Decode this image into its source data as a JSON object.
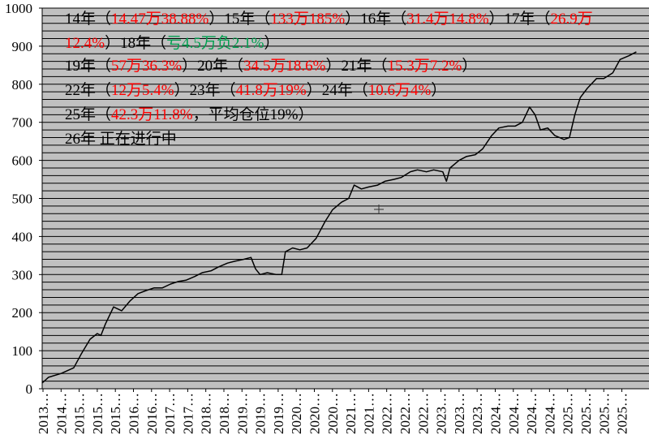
{
  "chart_data": {
    "type": "line",
    "ylim": [
      0,
      1000
    ],
    "yticks": [
      0,
      100,
      200,
      300,
      400,
      500,
      600,
      700,
      800,
      900,
      1000
    ],
    "grid": true,
    "grid_minor_divisions": 5,
    "plot_background": "#c0c0c0",
    "xlim": [
      0,
      33.5
    ],
    "xticks": [
      {
        "value": 0,
        "label": "2013…"
      },
      {
        "value": 1,
        "label": "2014…"
      },
      {
        "value": 2,
        "label": "2015…"
      },
      {
        "value": 3,
        "label": "2015…"
      },
      {
        "value": 4,
        "label": "2015…"
      },
      {
        "value": 5,
        "label": "2016…"
      },
      {
        "value": 6,
        "label": "2016…"
      },
      {
        "value": 7,
        "label": "2017…"
      },
      {
        "value": 8,
        "label": "2017…"
      },
      {
        "value": 9,
        "label": "2018…"
      },
      {
        "value": 10,
        "label": "2018…"
      },
      {
        "value": 11,
        "label": "2019…"
      },
      {
        "value": 12,
        "label": "2019…"
      },
      {
        "value": 13,
        "label": "2019…"
      },
      {
        "value": 14,
        "label": "2020…"
      },
      {
        "value": 15,
        "label": "2020…"
      },
      {
        "value": 16,
        "label": "2020…"
      },
      {
        "value": 17,
        "label": "2021…"
      },
      {
        "value": 18,
        "label": "2021…"
      },
      {
        "value": 19,
        "label": "2022…"
      },
      {
        "value": 20,
        "label": "2022…"
      },
      {
        "value": 21,
        "label": "2022…"
      },
      {
        "value": 22,
        "label": "2023…"
      },
      {
        "value": 23,
        "label": "2023…"
      },
      {
        "value": 24,
        "label": "2023…"
      },
      {
        "value": 25,
        "label": "2024…"
      },
      {
        "value": 26,
        "label": "2024…"
      },
      {
        "value": 27,
        "label": "2024…"
      },
      {
        "value": 28,
        "label": "2024…"
      },
      {
        "value": 29,
        "label": "2025…"
      },
      {
        "value": 30,
        "label": "2025…"
      },
      {
        "value": 31,
        "label": "2025…"
      },
      {
        "value": 32,
        "label": "2025…"
      }
    ],
    "series": [
      {
        "color": "#000000",
        "x": [
          -0.05,
          0.3,
          1.0,
          1.7,
          2.1,
          2.6,
          3.0,
          3.2,
          3.45,
          3.9,
          4.35,
          4.8,
          5.25,
          5.7,
          6.15,
          6.6,
          7.05,
          7.5,
          7.9,
          8.4,
          8.8,
          9.3,
          9.7,
          10.2,
          10.6,
          11.1,
          11.5,
          11.75,
          12.0,
          12.4,
          12.9,
          13.2,
          13.4,
          13.8,
          14.2,
          14.6,
          15.1,
          15.6,
          16.0,
          16.5,
          16.9,
          17.2,
          17.6,
          18.0,
          18.5,
          18.9,
          19.4,
          19.8,
          20.3,
          20.7,
          21.2,
          21.6,
          22.1,
          22.3,
          22.5,
          23.0,
          23.4,
          23.9,
          24.3,
          24.8,
          25.2,
          25.7,
          26.1,
          26.5,
          26.9,
          27.2,
          27.5,
          27.9,
          28.3,
          28.8,
          29.1,
          29.4,
          29.7,
          30.1,
          30.6,
          31.0,
          31.5,
          31.9,
          32.4,
          32.8
        ],
        "values": [
          15,
          30,
          40,
          55,
          90,
          130,
          145,
          140,
          170,
          215,
          205,
          230,
          250,
          258,
          265,
          265,
          275,
          282,
          285,
          295,
          305,
          310,
          320,
          330,
          335,
          340,
          345,
          315,
          300,
          305,
          300,
          300,
          360,
          370,
          365,
          370,
          395,
          440,
          470,
          490,
          500,
          535,
          525,
          530,
          535,
          545,
          550,
          555,
          570,
          575,
          570,
          575,
          570,
          545,
          580,
          600,
          610,
          615,
          630,
          665,
          685,
          690,
          690,
          700,
          740,
          720,
          680,
          685,
          665,
          655,
          660,
          720,
          765,
          790,
          815,
          815,
          830,
          865,
          875,
          885
        ]
      }
    ],
    "annotation_colors": {
      "black": "#000000",
      "red": "#ff0000",
      "green": "#00a050"
    },
    "annotations": [
      [
        {
          "text": "14年（",
          "color": "black"
        },
        {
          "text": "14.47万38.88%",
          "color": "red"
        },
        {
          "text": "）15年（",
          "color": "black"
        },
        {
          "text": "133万185%",
          "color": "red"
        },
        {
          "text": "）16年（",
          "color": "black"
        },
        {
          "text": "31.4万14.8%",
          "color": "red"
        },
        {
          "text": "）17年（",
          "color": "black"
        },
        {
          "text": "26.9万",
          "color": "red"
        }
      ],
      [
        {
          "text": "12.4%",
          "color": "red"
        },
        {
          "text": "）18年（",
          "color": "black"
        },
        {
          "text": "亏4.5万负2.1%",
          "color": "green"
        },
        {
          "text": "）",
          "color": "black"
        }
      ],
      [
        {
          "text": "19年（",
          "color": "black"
        },
        {
          "text": "57万36.3%",
          "color": "red"
        },
        {
          "text": "）20年（",
          "color": "black"
        },
        {
          "text": "34.5万18.6%",
          "color": "red"
        },
        {
          "text": "）21年（",
          "color": "black"
        },
        {
          "text": "15.3万7.2%",
          "color": "red"
        },
        {
          "text": "）",
          "color": "black"
        }
      ],
      [
        {
          "text": "22年（",
          "color": "black"
        },
        {
          "text": "12万5.4%",
          "color": "red"
        },
        {
          "text": "）23年（",
          "color": "black"
        },
        {
          "text": "41.8万19%",
          "color": "red"
        },
        {
          "text": "）24年（",
          "color": "black"
        },
        {
          "text": "10.6万4%",
          "color": "red"
        },
        {
          "text": "）",
          "color": "black"
        }
      ],
      [
        {
          "text": "25年（",
          "color": "black"
        },
        {
          "text": "42.3万11.8%",
          "color": "red"
        },
        {
          "text": "，平均仓位19%）",
          "color": "black"
        }
      ],
      [
        {
          "text": "26年 正在进行中",
          "color": "black"
        }
      ]
    ]
  }
}
